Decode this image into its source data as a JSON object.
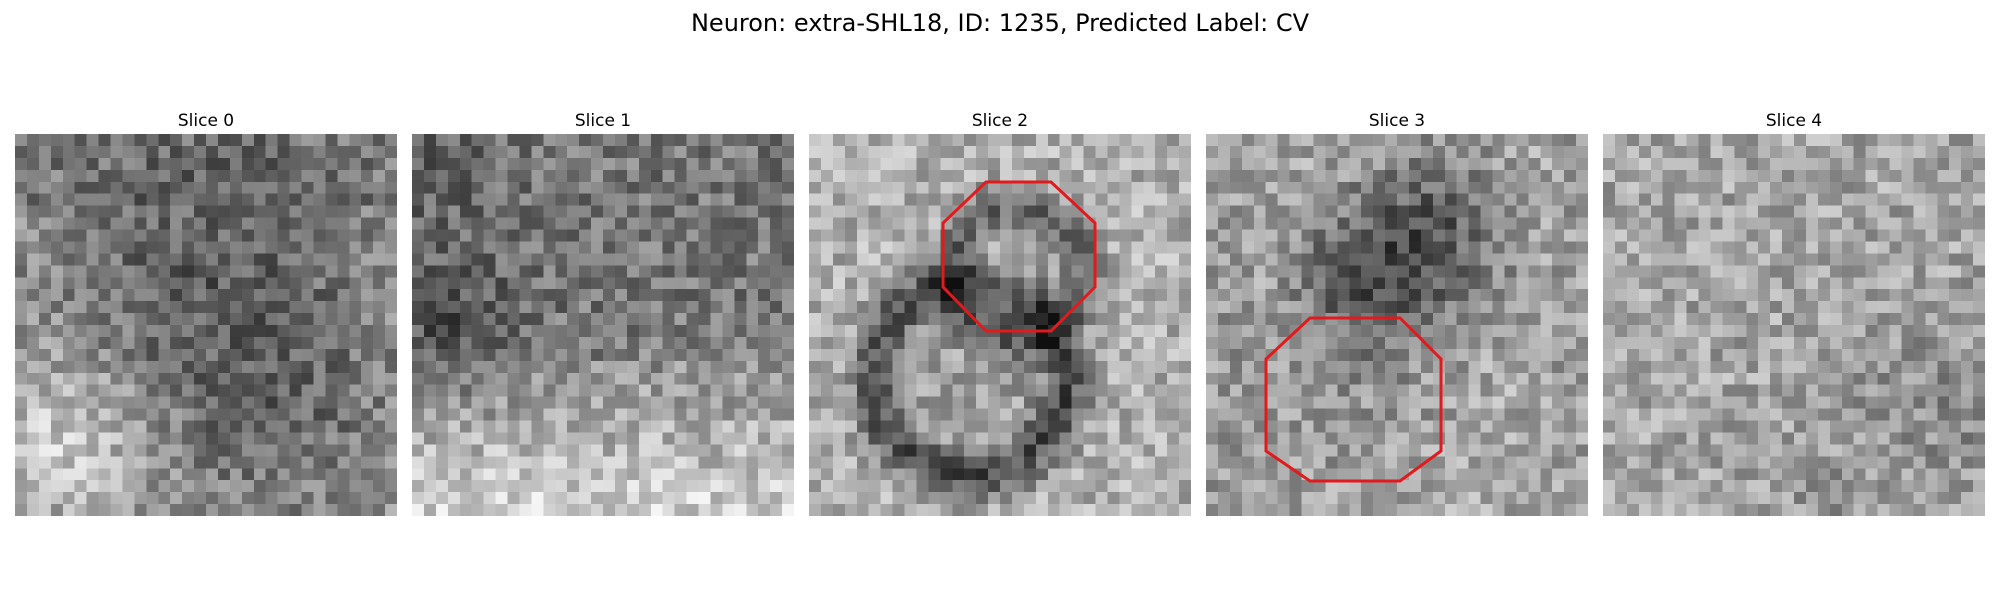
{
  "figure": {
    "title": "Neuron: extra-SHL18, ID: 1235, Predicted Label: CV"
  },
  "colors": {
    "annotation": "#e31a1c",
    "colormap": "gray"
  },
  "panels": [
    {
      "title": "Slice 0",
      "annotation": null
    },
    {
      "title": "Slice 1",
      "annotation": null
    },
    {
      "title": "Slice 2",
      "annotation": {
        "shape": "octagon",
        "color": "red"
      }
    },
    {
      "title": "Slice 3",
      "annotation": {
        "shape": "octagon",
        "color": "red"
      }
    },
    {
      "title": "Slice 4",
      "annotation": null
    }
  ]
}
